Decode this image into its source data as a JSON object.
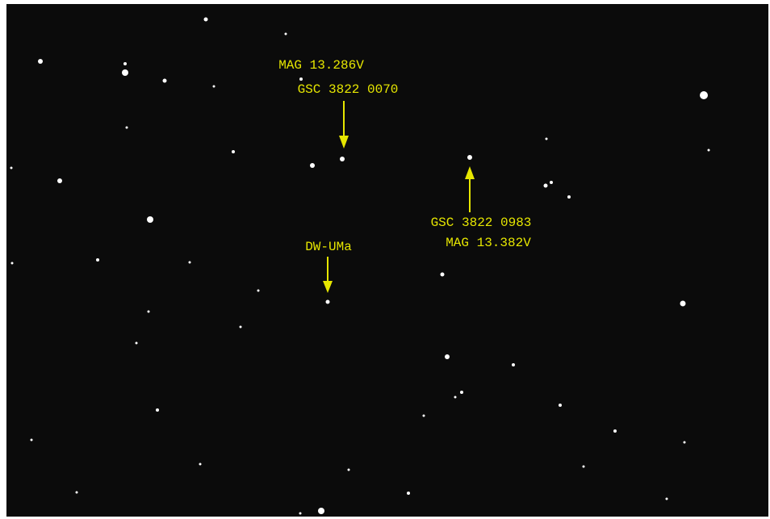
{
  "annotations": {
    "upper_star": {
      "magnitude": "MAG 13.286V",
      "catalog": "GSC 3822 0070"
    },
    "right_star": {
      "catalog": "GSC 3822 0983",
      "magnitude": "MAG 13.382V"
    },
    "variable": {
      "name": "DW-UMa"
    }
  }
}
